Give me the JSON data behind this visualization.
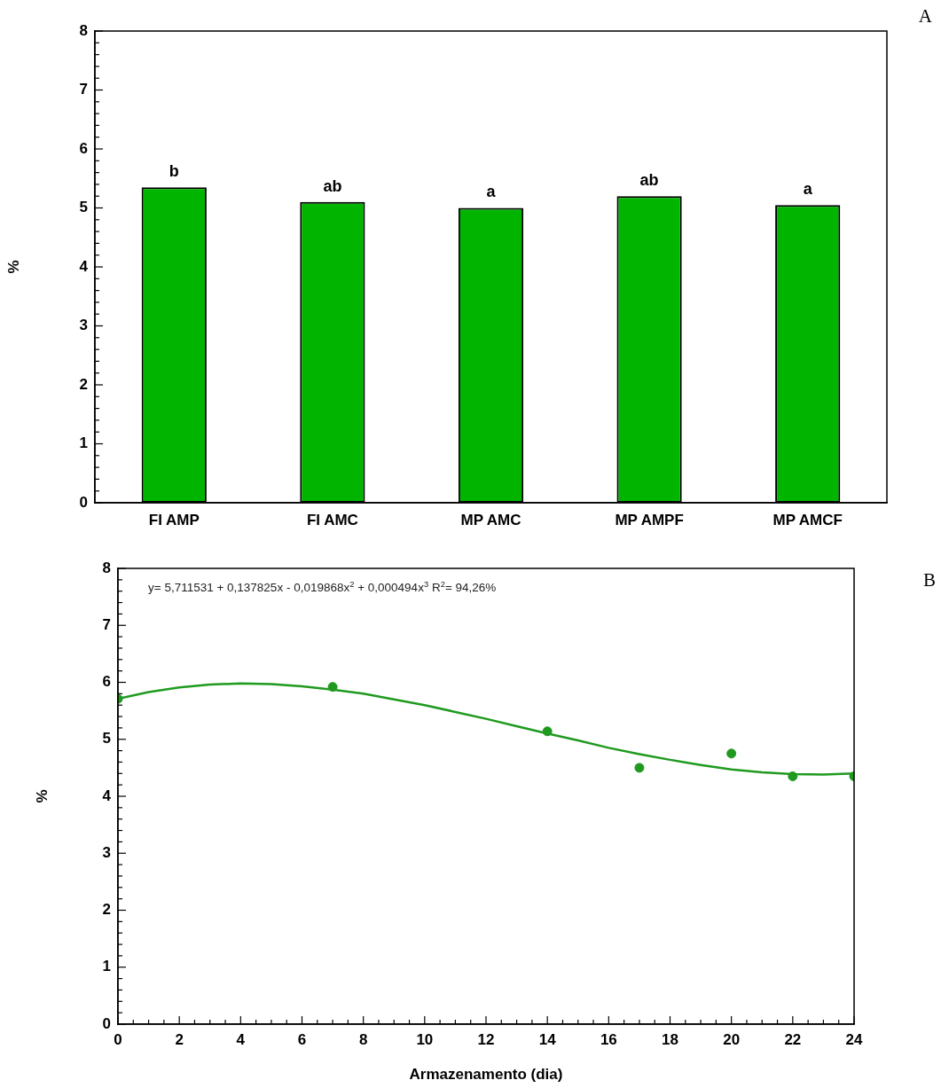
{
  "chart_data": [
    {
      "type": "bar",
      "ylabel": "%",
      "categories": [
        "FI AMP",
        "FI AMC",
        "MP AMC",
        "MP AMPF",
        "MP AMCF"
      ],
      "values": [
        5.35,
        5.1,
        5.0,
        5.2,
        5.05
      ],
      "color": "#00b400",
      "ylim": [
        0,
        8
      ],
      "yticks": [
        0,
        {
          "value": 0.2,
          "label": null
        },
        {
          "value": 0.4,
          "label": null
        },
        {
          "value": 0.6,
          "label": null
        },
        {
          "value": 0.8,
          "label": null
        },
        1,
        {
          "value": 1.2,
          "label": null
        },
        {
          "value": 1.4,
          "label": null
        },
        {
          "value": 1.6,
          "label": null
        },
        {
          "value": 1.8,
          "label": null
        },
        2,
        {
          "value": 2.2,
          "label": null
        },
        {
          "value": 2.4,
          "label": null
        },
        {
          "value": 2.6,
          "label": null
        },
        {
          "value": 2.8,
          "label": null
        },
        3,
        {
          "value": 3.2,
          "label": null
        },
        {
          "value": 3.4,
          "label": null
        },
        {
          "value": 3.6,
          "label": null
        },
        {
          "value": 3.8,
          "label": null
        },
        4,
        {
          "value": 4.2,
          "label": null
        },
        {
          "value": 4.4,
          "label": null
        },
        {
          "value": 4.6,
          "label": null
        },
        {
          "value": 4.8,
          "label": null
        },
        5,
        {
          "value": 5.2,
          "label": null
        },
        {
          "value": 5.4,
          "label": null
        },
        {
          "value": 5.6,
          "label": null
        },
        {
          "value": 5.8,
          "label": null
        },
        6,
        {
          "value": 6.2,
          "label": null
        },
        {
          "value": 6.4,
          "label": null
        },
        {
          "value": 6.6,
          "label": null
        },
        {
          "value": 6.8,
          "label": null
        },
        7,
        {
          "value": 7.2,
          "label": null
        },
        {
          "value": 7.4,
          "label": null
        },
        {
          "value": 7.6,
          "label": null
        },
        {
          "value": 7.8,
          "label": null
        },
        8
      ],
      "annotations": [
        "A",
        {
          "text": "b",
          "x": "FI AMP",
          "y": 5.35
        },
        {
          "text": "ab",
          "x": "FI AMC",
          "y": 5.1
        },
        {
          "text": "a",
          "x": "MP AMC",
          "y": 5.0
        },
        {
          "text": "ab",
          "x": "MP AMPF",
          "y": 5.2
        },
        {
          "text": "a",
          "x": "MP AMCF",
          "y": 5.05
        }
      ]
    },
    {
      "type": "scatter",
      "xlabel": "Armazenamento (dia)",
      "ylabel": "%",
      "series": [
        {
          "type": "scatter",
          "color": "#1f9a1f",
          "marker": "circle",
          "x": [
            0,
            7,
            14,
            17,
            20,
            22,
            24
          ],
          "values": [
            5.71,
            5.92,
            5.14,
            4.5,
            4.75,
            4.35,
            4.35
          ]
        },
        {
          "type": "line",
          "color": "#1f9a1f",
          "marker": "none",
          "line_style": "solid",
          "x": [
            0,
            1,
            2,
            3,
            4,
            5,
            6,
            7,
            8,
            9,
            10,
            11,
            12,
            13,
            14,
            15,
            16,
            17,
            18,
            19,
            20,
            21,
            22,
            23,
            24
          ],
          "values": [
            5.71,
            5.83,
            5.91,
            5.96,
            5.98,
            5.97,
            5.93,
            5.87,
            5.8,
            5.7,
            5.6,
            5.48,
            5.36,
            5.23,
            5.1,
            4.98,
            4.85,
            4.74,
            4.64,
            4.55,
            4.47,
            4.42,
            4.39,
            4.38,
            4.4
          ]
        }
      ],
      "xlim": [
        0,
        24
      ],
      "xticks": [
        0,
        {
          "value": 0.5,
          "label": null
        },
        {
          "value": 1,
          "label": null
        },
        {
          "value": 1.5,
          "label": null
        },
        2,
        {
          "value": 2.5,
          "label": null
        },
        {
          "value": 3,
          "label": null
        },
        {
          "value": 3.5,
          "label": null
        },
        4,
        {
          "value": 4.5,
          "label": null
        },
        {
          "value": 5,
          "label": null
        },
        {
          "value": 5.5,
          "label": null
        },
        6,
        {
          "value": 6.5,
          "label": null
        },
        {
          "value": 7,
          "label": null
        },
        {
          "value": 7.5,
          "label": null
        },
        8,
        {
          "value": 8.5,
          "label": null
        },
        {
          "value": 9,
          "label": null
        },
        {
          "value": 9.5,
          "label": null
        },
        10,
        {
          "value": 10.5,
          "label": null
        },
        {
          "value": 11,
          "label": null
        },
        {
          "value": 11.5,
          "label": null
        },
        12,
        {
          "value": 12.5,
          "label": null
        },
        {
          "value": 13,
          "label": null
        },
        {
          "value": 13.5,
          "label": null
        },
        14,
        {
          "value": 14.5,
          "label": null
        },
        {
          "value": 15,
          "label": null
        },
        {
          "value": 15.5,
          "label": null
        },
        16,
        {
          "value": 16.5,
          "label": null
        },
        {
          "value": 17,
          "label": null
        },
        {
          "value": 17.5,
          "label": null
        },
        18,
        {
          "value": 18.5,
          "label": null
        },
        {
          "value": 19,
          "label": null
        },
        {
          "value": 19.5,
          "label": null
        },
        20,
        {
          "value": 20.5,
          "label": null
        },
        {
          "value": 21,
          "label": null
        },
        {
          "value": 21.5,
          "label": null
        },
        22,
        {
          "value": 22.5,
          "label": null
        },
        {
          "value": 23,
          "label": null
        },
        {
          "value": 23.5,
          "label": null
        },
        24
      ],
      "ylim": [
        0,
        8
      ],
      "yticks": [
        0,
        {
          "value": 0.2,
          "label": null
        },
        {
          "value": 0.4,
          "label": null
        },
        {
          "value": 0.6,
          "label": null
        },
        {
          "value": 0.8,
          "label": null
        },
        1,
        {
          "value": 1.2,
          "label": null
        },
        {
          "value": 1.4,
          "label": null
        },
        {
          "value": 1.6,
          "label": null
        },
        {
          "value": 1.8,
          "label": null
        },
        2,
        {
          "value": 2.2,
          "label": null
        },
        {
          "value": 2.4,
          "label": null
        },
        {
          "value": 2.6,
          "label": null
        },
        {
          "value": 2.8,
          "label": null
        },
        3,
        {
          "value": 3.2,
          "label": null
        },
        {
          "value": 3.4,
          "label": null
        },
        {
          "value": 3.6,
          "label": null
        },
        {
          "value": 3.8,
          "label": null
        },
        4,
        {
          "value": 4.2,
          "label": null
        },
        {
          "value": 4.4,
          "label": null
        },
        {
          "value": 4.6,
          "label": null
        },
        {
          "value": 4.8,
          "label": null
        },
        5,
        {
          "value": 5.2,
          "label": null
        },
        {
          "value": 5.4,
          "label": null
        },
        {
          "value": 5.6,
          "label": null
        },
        {
          "value": 5.8,
          "label": null
        },
        6,
        {
          "value": 6.2,
          "label": null
        },
        {
          "value": 6.4,
          "label": null
        },
        {
          "value": 6.6,
          "label": null
        },
        {
          "value": 6.8,
          "label": null
        },
        7,
        {
          "value": 7.2,
          "label": null
        },
        {
          "value": 7.4,
          "label": null
        },
        {
          "value": 7.6,
          "label": null
        },
        {
          "value": 7.8,
          "label": null
        },
        8
      ],
      "annotations": [
        "B",
        "y= 5,711531 + 0,137825x - 0,019868x$^{2}$ + 0,000494x$^{3}$ R$^{2}$= 94,26%"
      ]
    }
  ]
}
